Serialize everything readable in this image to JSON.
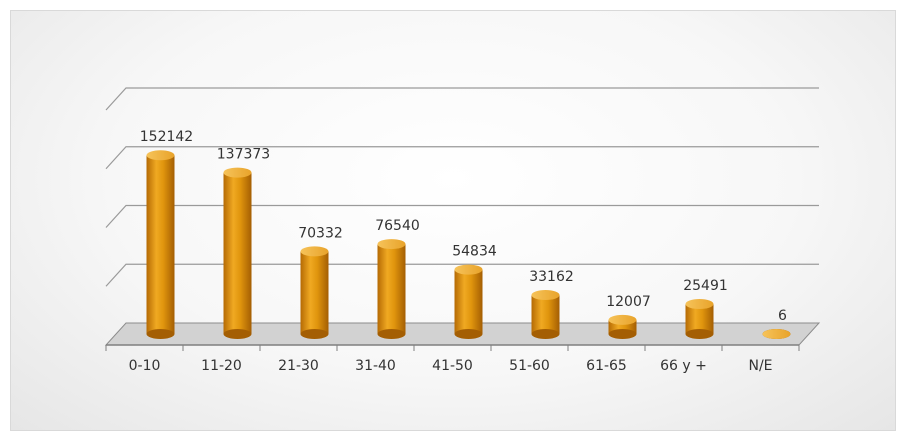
{
  "chart_data": {
    "type": "bar",
    "categories": [
      "0-10",
      "11-20",
      "21-30",
      "31-40",
      "41-50",
      "51-60",
      "61-65",
      "66 y +",
      "N/E"
    ],
    "values": [
      152142,
      137373,
      70332,
      76540,
      54834,
      33162,
      12007,
      25491,
      6
    ],
    "data_labels": [
      "152142",
      "137373",
      "70332",
      "76540",
      "54834",
      "33162",
      "12007",
      "25491",
      "6"
    ],
    "ylim": [
      0,
      200000
    ],
    "gridlines": [
      0,
      50000,
      100000,
      150000,
      200000
    ],
    "grid": true,
    "legend": "none",
    "bar_color": "#e0950d",
    "style": "3d-cylinder"
  }
}
